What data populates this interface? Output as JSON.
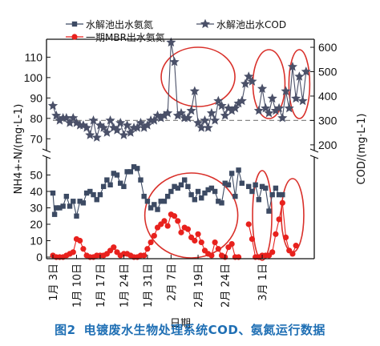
{
  "caption": {
    "figure_number": "图2",
    "title": "电镀废水生物处理系统COD、氨氮运行数据"
  },
  "colors": {
    "series_nh3_in": "#3c4a63",
    "series_mbr": "#e8211d",
    "series_cod": "#4a5068",
    "annotation_circle": "#d9302a",
    "reference_line": "#888888",
    "caption": "#1f6fb4"
  },
  "chart_data": {
    "type": "line",
    "xlabel": "日期",
    "ylabel_left": "NH4+-N/(mg·L-1)",
    "ylabel_right": "COD/(mg·L-1)",
    "y_left_axis": {
      "lower_segment": {
        "range": [
          0,
          60
        ],
        "ticks": [
          0,
          10,
          20,
          30,
          40,
          50
        ]
      },
      "upper_segment": {
        "range": [
          65,
          118
        ],
        "ticks": [
          70,
          80,
          90,
          100,
          110
        ]
      },
      "break_between": [
        60,
        65
      ]
    },
    "y_right_axis": {
      "range": [
        80,
        650
      ],
      "ticks": [
        200,
        300,
        400,
        500,
        600
      ]
    },
    "x_axis": {
      "range_days": [
        0,
        60
      ],
      "tick_labels": [
        "1月 3日",
        "1月 10日",
        "1月 17日",
        "1月 24日",
        "1月 31日",
        "2月 7日",
        "2月 19日",
        "2月 24日",
        "3月 1日"
      ],
      "tick_days": [
        0,
        7,
        14,
        21,
        28,
        35,
        42,
        49,
        56
      ]
    },
    "legend": {
      "position": "top",
      "entries": [
        "水解池出水氨氮",
        "水解池出水COD",
        "一期MBR出水氨氮"
      ]
    },
    "series": [
      {
        "name": "水解池出水氨氮",
        "marker": "square",
        "axis": "left",
        "segments": [
          [
            [
              0,
              39
            ],
            [
              0.5,
              26
            ],
            [
              1,
              30
            ],
            [
              2,
              30
            ],
            [
              3,
              31
            ],
            [
              4,
              37
            ],
            [
              5,
              31
            ],
            [
              6,
              34
            ],
            [
              7,
              25
            ],
            [
              8,
              34
            ],
            [
              9,
              33
            ],
            [
              10,
              39
            ],
            [
              11,
              40
            ],
            [
              12,
              38
            ],
            [
              13,
              35
            ],
            [
              14,
              38
            ],
            [
              15,
              43
            ],
            [
              16,
              47
            ],
            [
              17,
              44
            ],
            [
              18,
              51
            ],
            [
              19,
              50
            ],
            [
              20,
              45
            ],
            [
              21,
              43
            ],
            [
              22,
              52
            ],
            [
              23,
              52
            ],
            [
              24,
              55
            ],
            [
              25,
              54
            ],
            [
              26,
              47
            ],
            [
              27,
              37
            ],
            [
              28,
              34
            ],
            [
              29,
              30
            ],
            [
              30,
              32
            ],
            [
              31,
              29
            ],
            [
              32,
              34
            ],
            [
              33,
              34
            ],
            [
              34,
              37
            ],
            [
              35,
              40
            ],
            [
              36,
              43
            ],
            [
              37,
              42
            ],
            [
              38,
              44
            ],
            [
              39,
              47
            ],
            [
              40,
              43
            ],
            [
              41,
              38
            ],
            [
              42,
              35
            ],
            [
              43,
              40
            ],
            [
              44,
              36
            ],
            [
              45,
              39
            ],
            [
              46,
              41
            ],
            [
              47,
              42
            ],
            [
              48,
              40
            ],
            [
              49,
              34
            ],
            [
              50,
              33
            ],
            [
              51,
              45
            ],
            [
              52,
              44
            ],
            [
              53,
              51
            ],
            [
              54,
              37
            ],
            [
              55,
              53
            ],
            [
              56,
              45
            ]
          ],
          [
            [
              58,
              43
            ],
            [
              59,
              40
            ],
            [
              60,
              44
            ],
            [
              61,
              35
            ],
            [
              62,
              43
            ],
            [
              63,
              42
            ],
            [
              64,
              28
            ],
            [
              65,
              38
            ],
            [
              66,
              42
            ],
            [
              67,
              38
            ],
            [
              68,
              38
            ]
          ]
        ]
      },
      {
        "name": "一期MBR出水氨氮",
        "marker": "circle",
        "axis": "left",
        "segments": [
          [
            [
              0,
              1
            ],
            [
              1,
              0
            ],
            [
              2,
              0
            ],
            [
              3,
              0
            ],
            [
              4,
              1
            ],
            [
              5,
              2
            ],
            [
              6,
              3
            ],
            [
              7,
              11
            ],
            [
              8,
              10
            ],
            [
              9,
              5
            ],
            [
              10,
              1
            ],
            [
              11,
              0
            ],
            [
              12,
              0
            ],
            [
              13,
              1
            ],
            [
              14,
              1
            ],
            [
              15,
              1
            ],
            [
              16,
              2
            ],
            [
              17,
              4
            ],
            [
              18,
              6
            ],
            [
              19,
              3
            ],
            [
              20,
              1
            ],
            [
              21,
              2
            ],
            [
              22,
              2
            ],
            [
              23,
              1
            ],
            [
              24,
              0
            ],
            [
              25,
              0
            ],
            [
              26,
              1
            ],
            [
              27,
              1
            ],
            [
              28,
              5
            ],
            [
              29,
              9
            ],
            [
              30,
              13
            ],
            [
              31,
              18
            ],
            [
              32,
              20
            ],
            [
              33,
              22
            ],
            [
              34,
              19
            ],
            [
              35,
              26
            ],
            [
              36,
              25
            ],
            [
              37,
              22
            ],
            [
              38,
              15
            ],
            [
              39,
              18
            ],
            [
              40,
              17
            ],
            [
              41,
              12
            ],
            [
              42,
              10
            ],
            [
              43,
              14
            ],
            [
              44,
              9
            ],
            [
              45,
              4
            ],
            [
              46,
              2
            ],
            [
              47,
              1
            ],
            [
              48,
              9
            ],
            [
              49,
              5
            ],
            [
              50,
              1
            ],
            [
              51,
              0
            ],
            [
              52,
              6
            ],
            [
              53,
              8
            ],
            [
              54,
              0
            ],
            [
              55,
              0
            ]
          ],
          [
            [
              58,
              20
            ],
            [
              59,
              11
            ],
            [
              60,
              0
            ],
            [
              61,
              0
            ],
            [
              62,
              1
            ],
            [
              63,
              1
            ],
            [
              64,
              1
            ],
            [
              65,
              3
            ],
            [
              66,
              14
            ],
            [
              67,
              23
            ],
            [
              68,
              33
            ],
            [
              69,
              12
            ],
            [
              70,
              4
            ],
            [
              71,
              2
            ],
            [
              72,
              7
            ]
          ]
        ]
      },
      {
        "name": "水解池出水COD",
        "marker": "star",
        "axis": "right",
        "segments": [
          [
            [
              0,
              360
            ],
            [
              1,
              320
            ],
            [
              2,
              300
            ],
            [
              3,
              310
            ],
            [
              4,
              310
            ],
            [
              5,
              290
            ],
            [
              6,
              310
            ],
            [
              7,
              290
            ],
            [
              8,
              280
            ],
            [
              9,
              280
            ],
            [
              10,
              270
            ],
            [
              11,
              240
            ],
            [
              12,
              300
            ],
            [
              13,
              230
            ],
            [
              14,
              280
            ],
            [
              15,
              270
            ],
            [
              16,
              250
            ],
            [
              17,
              300
            ],
            [
              18,
              270
            ],
            [
              19,
              260
            ],
            [
              20,
              290
            ],
            [
              21,
              240
            ],
            [
              22,
              280
            ],
            [
              23,
              250
            ],
            [
              24,
              270
            ],
            [
              25,
              270
            ],
            [
              26,
              290
            ],
            [
              27,
              270
            ],
            [
              28,
              280
            ],
            [
              29,
              300
            ],
            [
              30,
              300
            ],
            [
              31,
              320
            ],
            [
              32,
              310
            ],
            [
              33,
              320
            ],
            [
              34,
              330
            ],
            [
              35,
              620
            ],
            [
              36,
              540
            ],
            [
              37,
              320
            ],
            [
              38,
              330
            ],
            [
              39,
              310
            ],
            [
              40,
              310
            ],
            [
              41,
              340
            ],
            [
              42,
              420
            ],
            [
              43,
              290
            ],
            [
              44,
              270
            ],
            [
              45,
              300
            ],
            [
              46,
              270
            ],
            [
              47,
              330
            ],
            [
              48,
              300
            ],
            [
              49,
              380
            ],
            [
              50,
              360
            ],
            [
              51,
              320
            ],
            [
              52,
              350
            ],
            [
              53,
              340
            ],
            [
              54,
              350
            ],
            [
              55,
              370
            ],
            [
              56,
              380
            ],
            [
              57,
              450
            ],
            [
              58,
              480
            ],
            [
              59,
              460
            ]
          ],
          [
            [
              61,
              340
            ],
            [
              62,
              430
            ],
            [
              63,
              350
            ],
            [
              64,
              330
            ],
            [
              65,
              390
            ],
            [
              66,
              340
            ],
            [
              67,
              350
            ],
            [
              68,
              310
            ],
            [
              69,
              420
            ],
            [
              70,
              350
            ],
            [
              71,
              520
            ],
            [
              72,
              390
            ],
            [
              73,
              480
            ],
            [
              74,
              380
            ],
            [
              75,
              500
            ]
          ]
        ]
      }
    ]
  }
}
